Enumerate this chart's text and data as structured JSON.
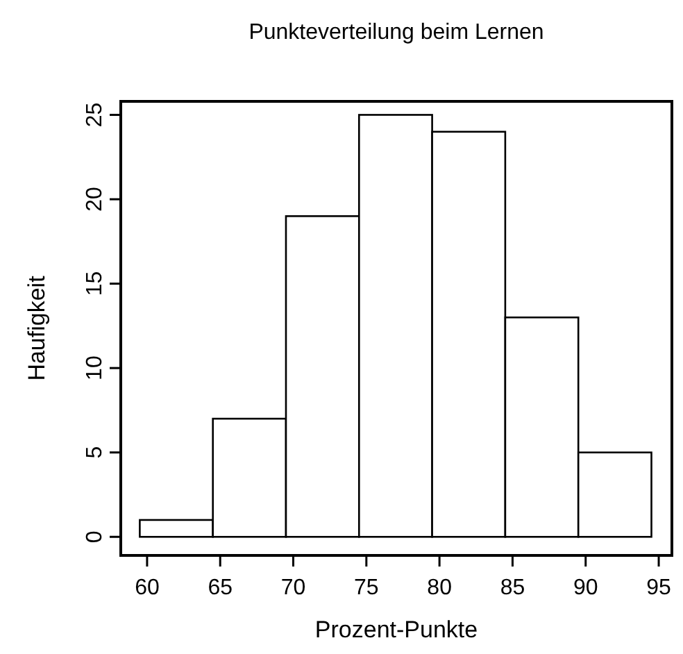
{
  "chart_data": {
    "type": "histogram",
    "title": "Punkteverteilung beim Lernen",
    "xlabel": "Prozent-Punkte",
    "ylabel": "Haufigkeit",
    "bins": [
      59.5,
      64.5,
      69.5,
      74.5,
      79.5,
      84.5,
      89.5,
      94.5
    ],
    "values": [
      1,
      7,
      19,
      25,
      24,
      13,
      5
    ],
    "color": "#ffffff",
    "xlim": [
      58.2,
      95.9
    ],
    "xticks": [
      60,
      65,
      70,
      75,
      80,
      85,
      90,
      95
    ],
    "ylim": [
      -1.1,
      25.8
    ],
    "yticks": [
      0,
      5,
      10,
      15,
      20,
      25
    ],
    "grid": false
  }
}
